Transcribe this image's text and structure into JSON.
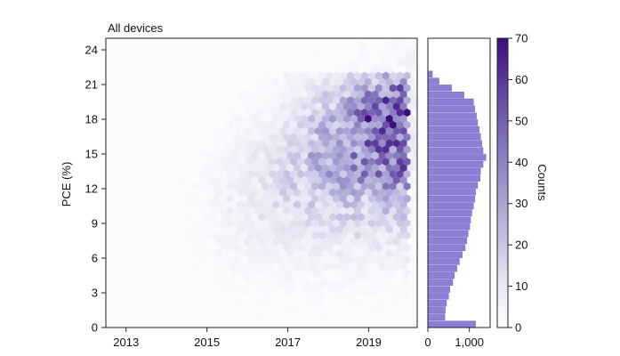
{
  "chart_data": [
    {
      "type": "heatmap",
      "panel_title": "All devices",
      "xlabel": "",
      "ylabel": "PCE (%)",
      "xlim": [
        2012.5,
        2020.2
      ],
      "ylim": [
        0,
        25
      ],
      "x_ticks": [
        "2013",
        "2015",
        "2017",
        "2019"
      ],
      "x_tick_values": [
        2013,
        2015,
        2017,
        2019
      ],
      "y_ticks": [
        "0",
        "3",
        "6",
        "9",
        "12",
        "15",
        "18",
        "21",
        "24"
      ],
      "y_tick_values": [
        0,
        3,
        6,
        9,
        12,
        15,
        18,
        21,
        24
      ],
      "bin_shape": "hexagon",
      "density_hotspot": {
        "x": [
          2018.0,
          2019.8
        ],
        "y": [
          13,
          20
        ]
      },
      "peak_count_near": {
        "x": 2019.1,
        "y": 18.5
      }
    },
    {
      "type": "bar",
      "orientation": "horizontal",
      "xlabel": "",
      "x_ticks": [
        "0",
        "1,000"
      ],
      "x_tick_values": [
        0,
        1000
      ],
      "xlim": [
        0,
        1500
      ],
      "bin_width": 0.6,
      "bin_starts": [
        0,
        0.6,
        1.2,
        1.8,
        2.4,
        3.0,
        3.6,
        4.2,
        4.8,
        5.4,
        6.0,
        6.6,
        7.2,
        7.8,
        8.4,
        9.0,
        9.6,
        10.2,
        10.8,
        11.4,
        12.0,
        12.6,
        13.2,
        13.8,
        14.4,
        15.0,
        15.6,
        16.2,
        16.8,
        17.4,
        18.0,
        18.6,
        19.2,
        19.8,
        20.4,
        21.0,
        21.6
      ],
      "counts": [
        1150,
        410,
        420,
        450,
        500,
        530,
        600,
        640,
        700,
        760,
        830,
        900,
        940,
        970,
        1010,
        1030,
        1060,
        1100,
        1130,
        1150,
        1200,
        1260,
        1270,
        1330,
        1400,
        1330,
        1300,
        1270,
        1240,
        1200,
        1170,
        1130,
        1100,
        870,
        570,
        270,
        110
      ],
      "color": "#8b80d6"
    }
  ],
  "colorbar": {
    "label": "Counts",
    "ticks": [
      "0",
      "10",
      "20",
      "30",
      "40",
      "50",
      "60",
      "70"
    ],
    "tick_values": [
      0,
      10,
      20,
      30,
      40,
      50,
      60,
      70
    ],
    "range": [
      0,
      70
    ],
    "colors": [
      "#ffffff",
      "#e6e4f2",
      "#bcbbe0",
      "#9a93cc",
      "#7c6cb7",
      "#5d3f9d",
      "#3f0b80"
    ]
  }
}
